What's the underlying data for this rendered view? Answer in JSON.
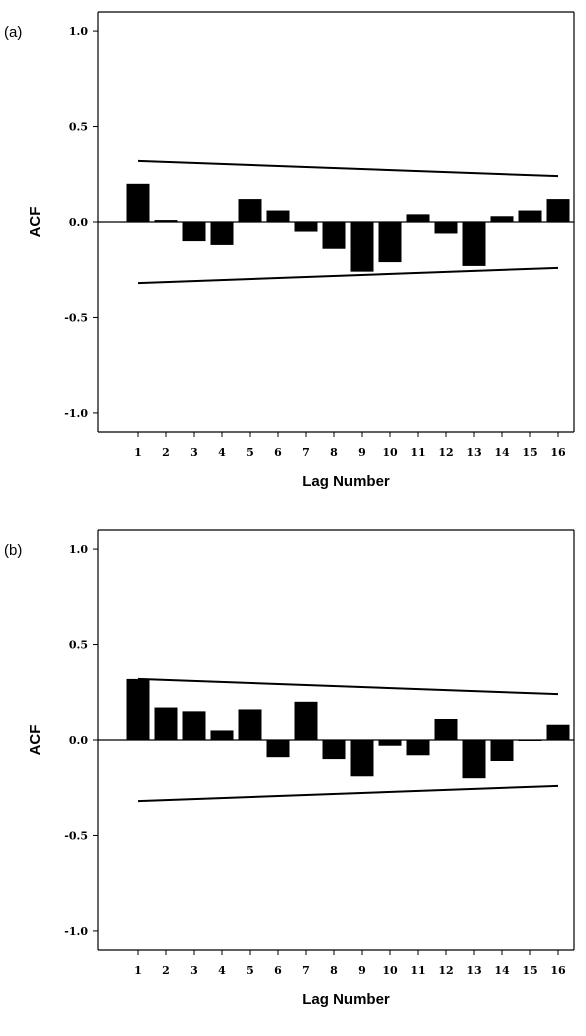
{
  "chart_data": [
    {
      "type": "bar",
      "panel_label": "(a)",
      "xlabel": "Lag Number",
      "ylabel": "ACF",
      "ylim": [
        -1.1,
        1.1
      ],
      "yticks": [
        "1.0",
        "0.5",
        "0.0",
        "-0.5",
        "-1.0"
      ],
      "ytick_values": [
        1.0,
        0.5,
        0.0,
        -0.5,
        -1.0
      ],
      "categories": [
        "1",
        "2",
        "3",
        "4",
        "5",
        "6",
        "7",
        "8",
        "9",
        "10",
        "11",
        "12",
        "13",
        "14",
        "15",
        "16"
      ],
      "values": [
        0.2,
        0.01,
        -0.1,
        -0.12,
        0.12,
        0.06,
        -0.05,
        -0.14,
        -0.26,
        -0.21,
        0.04,
        -0.06,
        -0.23,
        0.03,
        0.06,
        0.12
      ],
      "confidence_upper": [
        0.32,
        0.24
      ],
      "confidence_lower": [
        -0.32,
        -0.24
      ],
      "grid": false
    },
    {
      "type": "bar",
      "panel_label": "(b)",
      "xlabel": "Lag Number",
      "ylabel": "ACF",
      "ylim": [
        -1.1,
        1.1
      ],
      "yticks": [
        "1.0",
        "0.5",
        "0.0",
        "-0.5",
        "-1.0"
      ],
      "ytick_values": [
        1.0,
        0.5,
        0.0,
        -0.5,
        -1.0
      ],
      "categories": [
        "1",
        "2",
        "3",
        "4",
        "5",
        "6",
        "7",
        "8",
        "9",
        "10",
        "11",
        "12",
        "13",
        "14",
        "15",
        "16"
      ],
      "values": [
        0.32,
        0.17,
        0.15,
        0.05,
        0.16,
        -0.09,
        0.2,
        -0.1,
        -0.19,
        -0.03,
        -0.08,
        0.11,
        -0.2,
        -0.11,
        0.0,
        0.08
      ],
      "confidence_upper": [
        0.32,
        0.24
      ],
      "confidence_lower": [
        -0.32,
        -0.24
      ],
      "grid": false
    }
  ]
}
